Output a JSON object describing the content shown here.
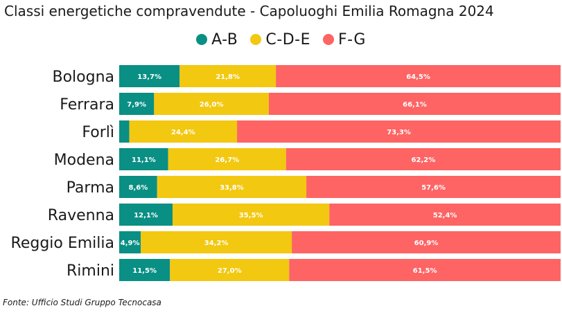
{
  "title": "Classi energetiche compravendute - Capoluoghi Emilia Romagna 2024",
  "source": "Fonte: Ufficio Studi Gruppo Tecnocasa",
  "colors": {
    "A-B": "#0a8f84",
    "C-D-E": "#f2c811",
    "F-G": "#fd6463"
  },
  "chart_data": {
    "type": "bar",
    "orientation": "horizontal",
    "stacked": true,
    "categories": [
      "Bologna",
      "Ferrara",
      "Forlì",
      "Modena",
      "Parma",
      "Ravenna",
      "Reggio Emilia",
      "Rimini"
    ],
    "series": [
      {
        "name": "A-B",
        "values": [
          13.7,
          7.9,
          2.3,
          11.1,
          8.6,
          12.1,
          4.9,
          11.5
        ],
        "labels": [
          "13,7%",
          "7,9%",
          "",
          "11,1%",
          "8,6%",
          "12,1%",
          "4,9%",
          "11,5%"
        ]
      },
      {
        "name": "C-D-E",
        "values": [
          21.8,
          26.0,
          24.4,
          26.7,
          33.8,
          35.5,
          34.2,
          27.0
        ],
        "labels": [
          "21,8%",
          "26,0%",
          "24,4%",
          "26,7%",
          "33,8%",
          "35,5%",
          "34,2%",
          "27,0%"
        ]
      },
      {
        "name": "F-G",
        "values": [
          64.5,
          66.1,
          73.3,
          62.2,
          57.6,
          52.4,
          60.9,
          61.5
        ],
        "labels": [
          "64,5%",
          "66,1%",
          "73,3%",
          "62,2%",
          "57,6%",
          "52,4%",
          "60,9%",
          "61,5%"
        ]
      }
    ],
    "xlim": [
      0,
      100
    ],
    "legend_position": "top",
    "grid": false
  }
}
